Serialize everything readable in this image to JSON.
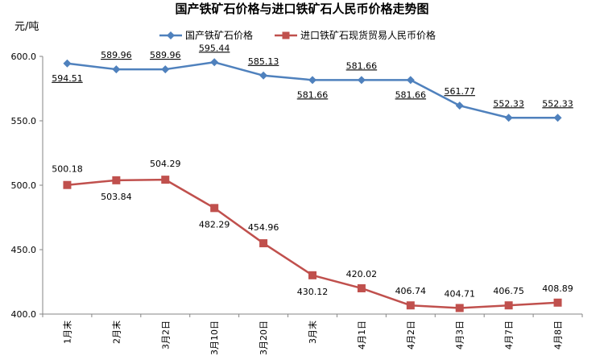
{
  "chart_data": {
    "type": "line",
    "title": "国产铁矿石价格与进口铁矿石人民币价格走势图",
    "ylabel": "元/吨",
    "xlabel": "",
    "categories": [
      "1月末",
      "2月末",
      "3月2日",
      "3月10日",
      "3月20日",
      "3月末",
      "4月1日",
      "4月2日",
      "4月3日",
      "4月7日",
      "4月8日"
    ],
    "ylim": [
      400.0,
      600.0
    ],
    "yticks": [
      "400.0",
      "450.0",
      "500.0",
      "550.0",
      "600.0"
    ],
    "grid": false,
    "legend_position": "top",
    "series": [
      {
        "name": "国产铁矿石价格",
        "color": "#4F81BD",
        "marker": "diamond",
        "values": [
          594.51,
          589.96,
          589.96,
          595.44,
          585.13,
          581.66,
          581.66,
          581.66,
          561.77,
          552.33,
          552.33
        ],
        "labels": [
          "594.51",
          "589.96",
          "589.96",
          "595.44",
          "585.13",
          "581.66",
          "581.66",
          "581.66",
          "561.77",
          "552.33",
          "552.33"
        ]
      },
      {
        "name": "进口铁矿石现货贸易人民币价格",
        "color": "#C0504D",
        "marker": "square",
        "values": [
          500.18,
          503.84,
          504.29,
          482.29,
          454.96,
          430.12,
          420.02,
          406.74,
          404.71,
          406.75,
          408.89
        ],
        "labels": [
          "500.18",
          "503.84",
          "504.29",
          "482.29",
          "454.96",
          "430.12",
          "420.02",
          "406.74",
          "404.71",
          "406.75",
          "408.89"
        ]
      }
    ]
  }
}
